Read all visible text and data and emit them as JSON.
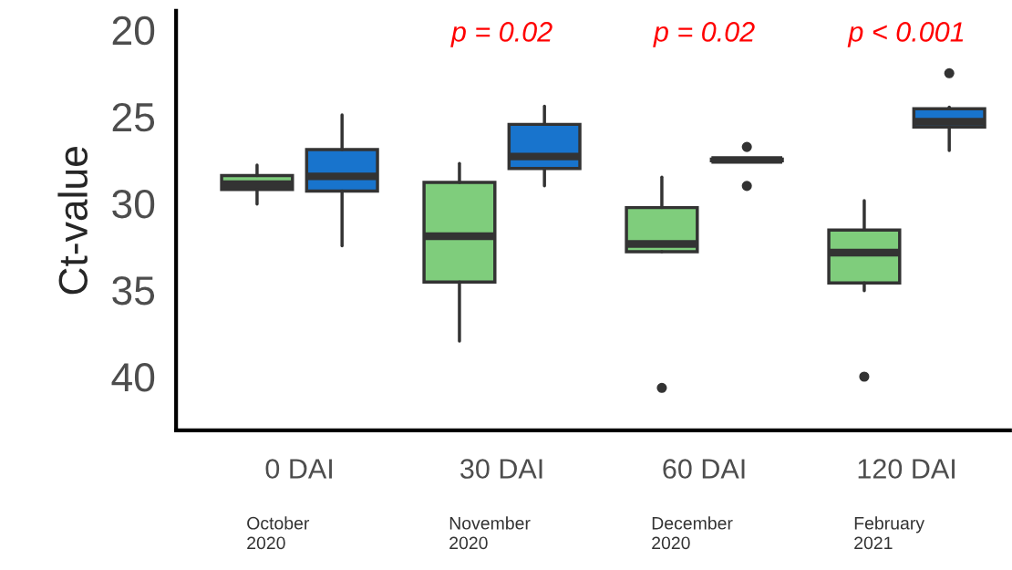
{
  "chart_data": {
    "type": "box",
    "ylabel": "Ct-value",
    "categories": [
      "0 DAI",
      "30 DAI",
      "60 DAI",
      "120 DAI"
    ],
    "ylim": [
      43.1,
      18.9
    ],
    "yticks": [
      20,
      25,
      30,
      35,
      40
    ],
    "grid": false,
    "legend": false,
    "series": [
      {
        "color": "#7fcd7c",
        "boxes": [
          {
            "low": 27.8,
            "q1": 28.4,
            "median": 28.9,
            "q3": 29.2,
            "high": 30.05
          },
          {
            "low": 27.7,
            "q1": 28.8,
            "median": 31.9,
            "q3": 34.55,
            "high": 37.95
          },
          {
            "low": 28.5,
            "q1": 30.25,
            "median": 32.35,
            "q3": 32.8,
            "high": 32.8,
            "outliers": [
              40.65
            ]
          },
          {
            "low": 29.85,
            "q1": 31.55,
            "median": 32.85,
            "q3": 34.6,
            "high": 35.05,
            "outliers": [
              40.0
            ]
          }
        ]
      },
      {
        "color": "#1874cd",
        "boxes": [
          {
            "low": 24.9,
            "q1": 26.9,
            "median": 28.45,
            "q3": 29.3,
            "high": 32.45
          },
          {
            "low": 24.4,
            "q1": 25.45,
            "median": 27.3,
            "q3": 28.0,
            "high": 29.0
          },
          {
            "low": 27.45,
            "q1": 27.45,
            "median": 27.5,
            "q3": 27.55,
            "high": 27.55,
            "outliers": [
              26.75,
              29.0
            ]
          },
          {
            "low": 24.45,
            "q1": 24.55,
            "median": 25.3,
            "q3": 25.6,
            "high": 26.95,
            "outliers": [
              22.5
            ]
          }
        ]
      }
    ],
    "annotations": [
      "p = 0.02",
      "p = 0.02",
      "p < 0.001",
      "October\n2020",
      "November\n2020",
      "December\n2020",
      "February\n2021"
    ]
  }
}
